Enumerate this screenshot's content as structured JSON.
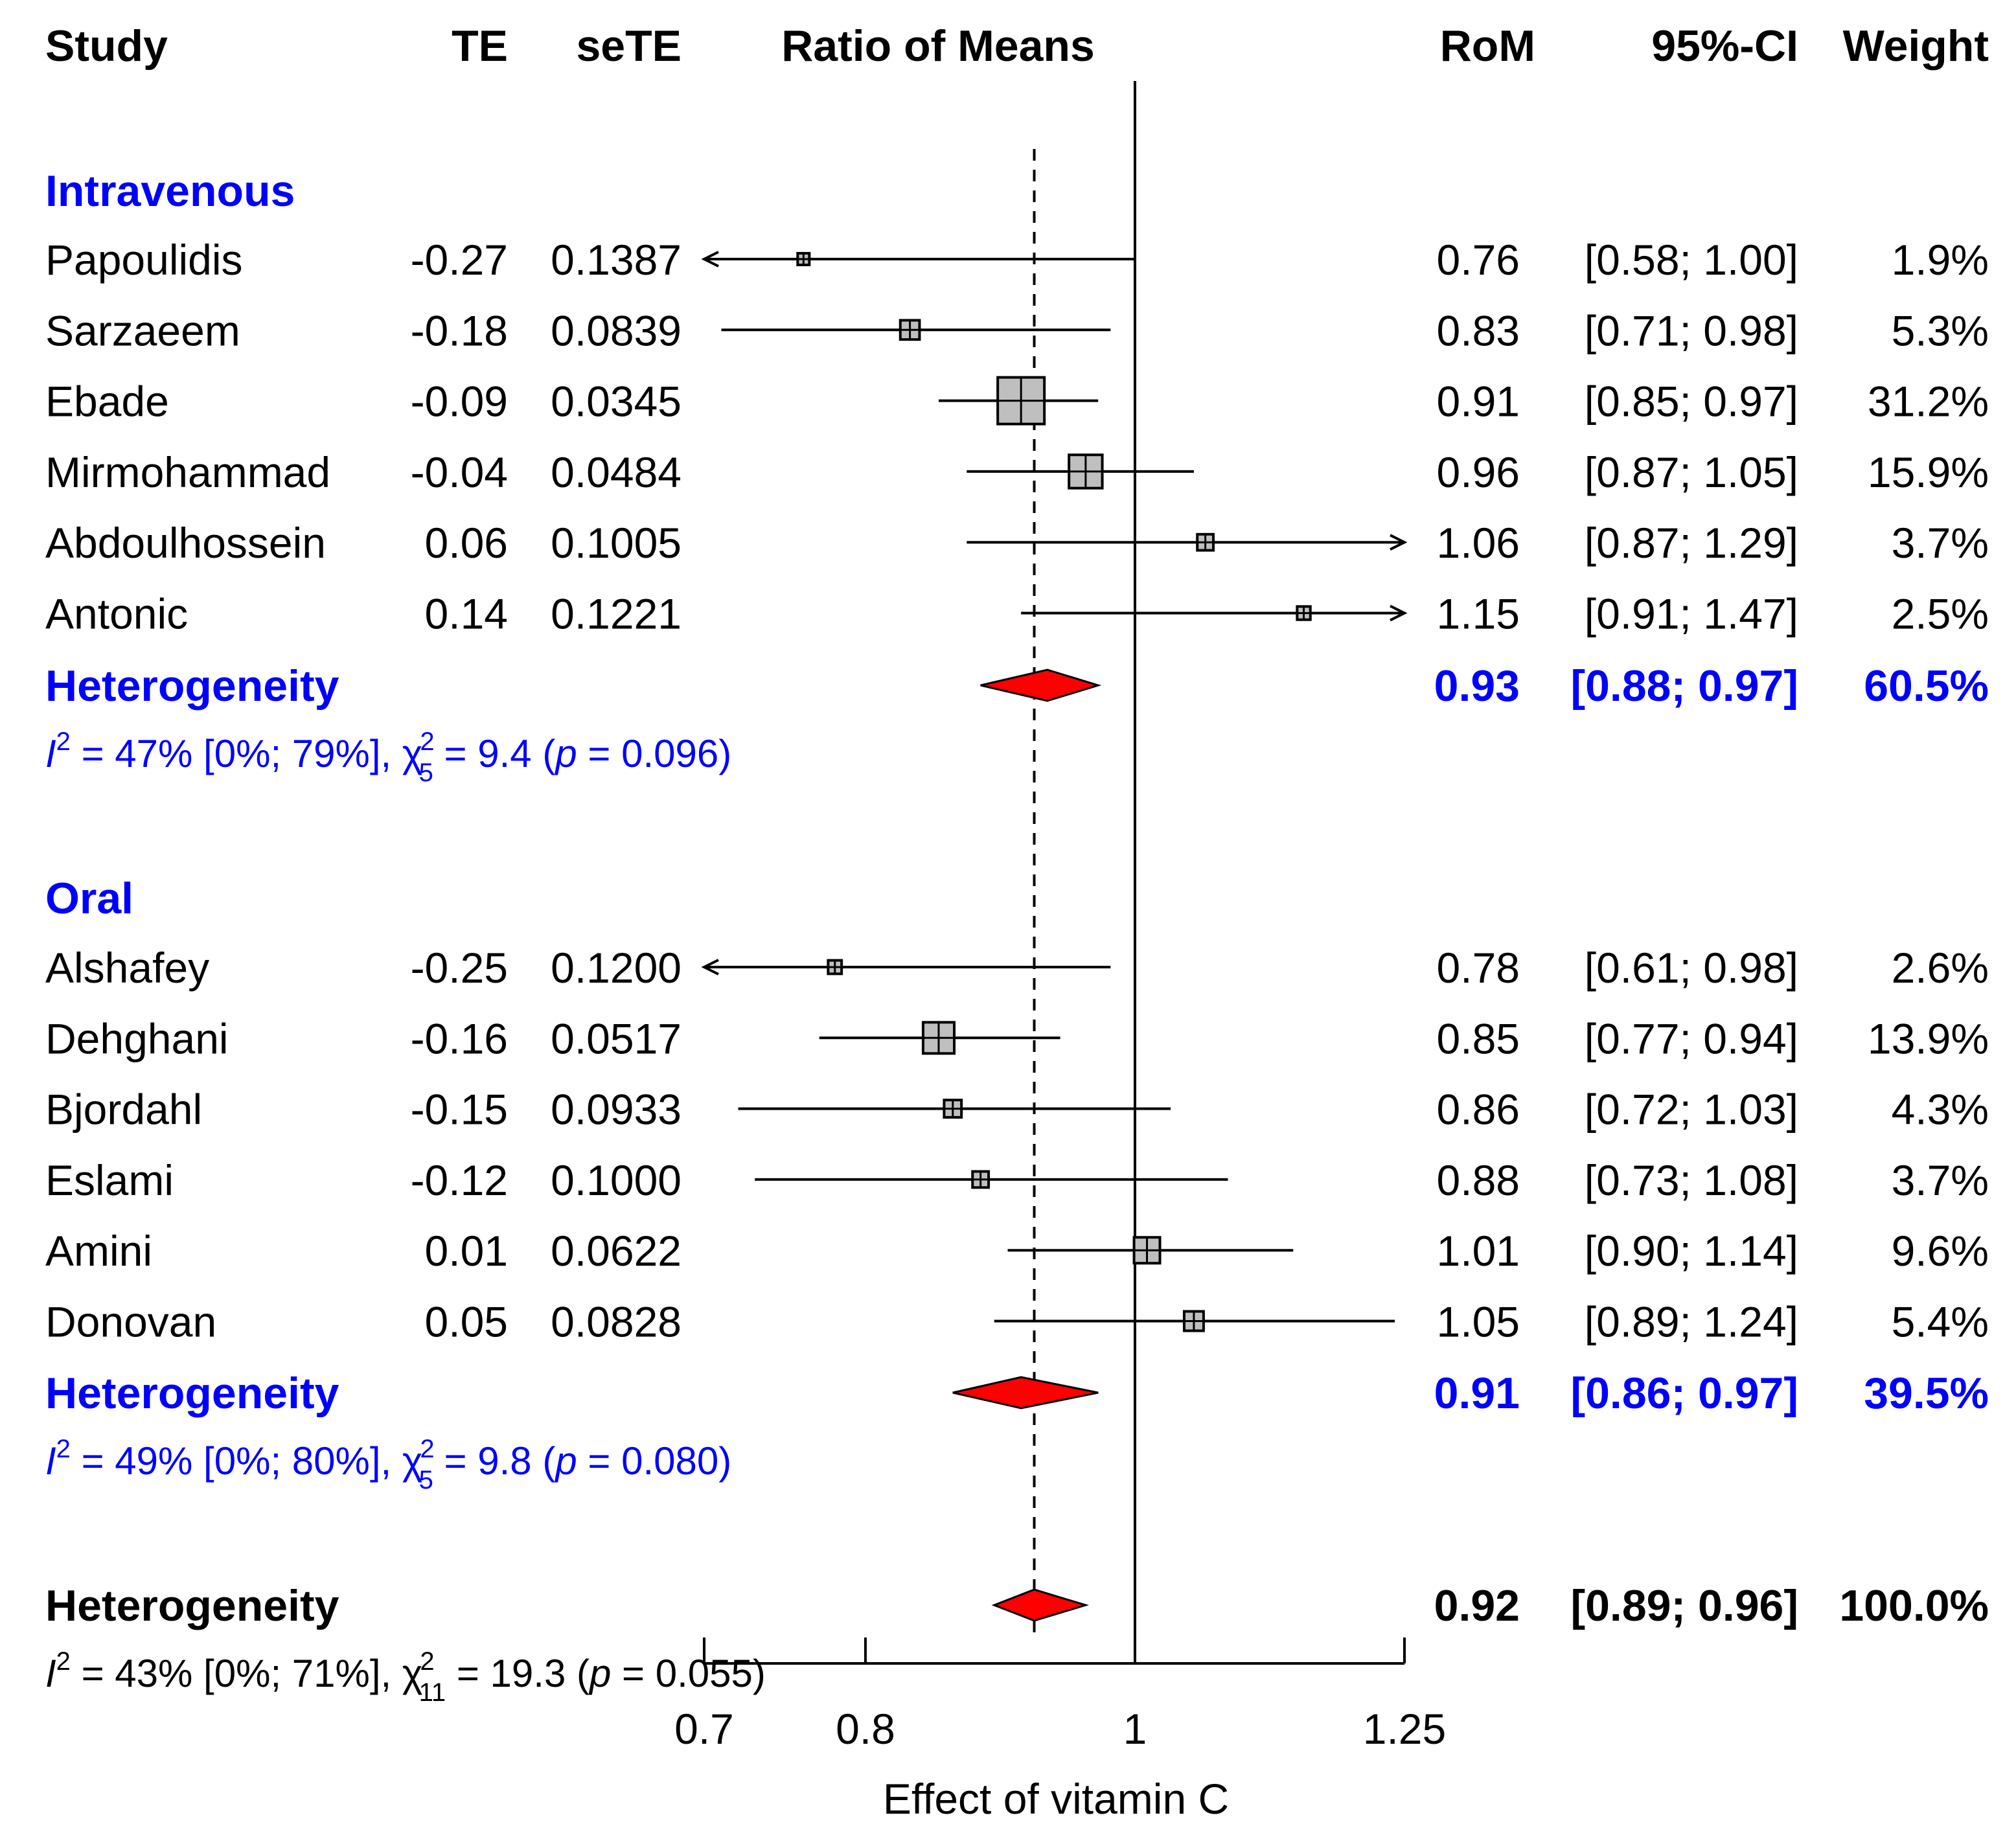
{
  "headers": {
    "study": "Study",
    "te": "TE",
    "sete": "seTE",
    "plot": "Ratio of Means",
    "rom": "RoM",
    "ci": "95%-CI",
    "weight": "Weight"
  },
  "colors": {
    "group_text": "#0000ff",
    "diamond": "#ff0000",
    "box": "#bfbfbf"
  },
  "chart_data": {
    "type": "forest",
    "x_scale": "log",
    "xlim": [
      0.7,
      1.25
    ],
    "ticks": [
      {
        "value": 0.7,
        "label": "0.7"
      },
      {
        "value": 0.8,
        "label": "0.8"
      },
      {
        "value": 1,
        "label": "1"
      },
      {
        "value": 1.25,
        "label": "1.25"
      }
    ],
    "xlabel": "Effect of vitamin C",
    "reference_line": 1,
    "overall_line": 0.92,
    "groups": [
      {
        "name": "Intravenous",
        "studies": [
          {
            "study": "Papoulidis",
            "te": "-0.27",
            "sete": "0.1387",
            "rom": 0.76,
            "lower": 0.58,
            "upper": 1.0,
            "rom_label": "0.76",
            "ci_label": "[0.58; 1.00]",
            "weight": "1.9%",
            "w": 1.9
          },
          {
            "study": "Sarzaeem",
            "te": "-0.18",
            "sete": "0.0839",
            "rom": 0.83,
            "lower": 0.71,
            "upper": 0.98,
            "rom_label": "0.83",
            "ci_label": "[0.71; 0.98]",
            "weight": "5.3%",
            "w": 5.3
          },
          {
            "study": "Ebade",
            "te": "-0.09",
            "sete": "0.0345",
            "rom": 0.91,
            "lower": 0.85,
            "upper": 0.97,
            "rom_label": "0.91",
            "ci_label": "[0.85; 0.97]",
            "weight": "31.2%",
            "w": 31.2
          },
          {
            "study": "Mirmohammad",
            "te": "-0.04",
            "sete": "0.0484",
            "rom": 0.96,
            "lower": 0.87,
            "upper": 1.05,
            "rom_label": "0.96",
            "ci_label": "[0.87; 1.05]",
            "weight": "15.9%",
            "w": 15.9
          },
          {
            "study": "Abdoulhossein",
            "te": "0.06",
            "sete": "0.1005",
            "rom": 1.06,
            "lower": 0.87,
            "upper": 1.29,
            "rom_label": "1.06",
            "ci_label": "[0.87; 1.29]",
            "weight": "3.7%",
            "w": 3.7
          },
          {
            "study": "Antonic",
            "te": "0.14",
            "sete": "0.1221",
            "rom": 1.15,
            "lower": 0.91,
            "upper": 1.47,
            "rom_label": "1.15",
            "ci_label": "[0.91; 1.47]",
            "weight": "2.5%",
            "w": 2.5
          }
        ],
        "summary": {
          "label": "Heterogeneity",
          "rom": 0.93,
          "lower": 0.88,
          "upper": 0.97,
          "rom_label": "0.93",
          "ci_label": "[0.88; 0.97]",
          "weight": "60.5%"
        },
        "het": {
          "i2_text": "= 47% [0%; 79%], ",
          "chi_sub": "5",
          "chi_value": " = 9.4 (",
          "p_text": " = 0.096)"
        }
      },
      {
        "name": "Oral",
        "studies": [
          {
            "study": "Alshafey",
            "te": "-0.25",
            "sete": "0.1200",
            "rom": 0.78,
            "lower": 0.61,
            "upper": 0.98,
            "rom_label": "0.78",
            "ci_label": "[0.61; 0.98]",
            "weight": "2.6%",
            "w": 2.6
          },
          {
            "study": "Dehghani",
            "te": "-0.16",
            "sete": "0.0517",
            "rom": 0.85,
            "lower": 0.77,
            "upper": 0.94,
            "rom_label": "0.85",
            "ci_label": "[0.77; 0.94]",
            "weight": "13.9%",
            "w": 13.9
          },
          {
            "study": "Bjordahl",
            "te": "-0.15",
            "sete": "0.0933",
            "rom": 0.86,
            "lower": 0.72,
            "upper": 1.03,
            "rom_label": "0.86",
            "ci_label": "[0.72; 1.03]",
            "weight": "4.3%",
            "w": 4.3
          },
          {
            "study": "Eslami",
            "te": "-0.12",
            "sete": "0.1000",
            "rom": 0.88,
            "lower": 0.73,
            "upper": 1.08,
            "rom_label": "0.88",
            "ci_label": "[0.73; 1.08]",
            "weight": "3.7%",
            "w": 3.7
          },
          {
            "study": "Amini",
            "te": "0.01",
            "sete": "0.0622",
            "rom": 1.01,
            "lower": 0.9,
            "upper": 1.14,
            "rom_label": "1.01",
            "ci_label": "[0.90; 1.14]",
            "weight": "9.6%",
            "w": 9.6
          },
          {
            "study": "Donovan",
            "te": "0.05",
            "sete": "0.0828",
            "rom": 1.05,
            "lower": 0.89,
            "upper": 1.24,
            "rom_label": "1.05",
            "ci_label": "[0.89; 1.24]",
            "weight": "5.4%",
            "w": 5.4
          }
        ],
        "summary": {
          "label": "Heterogeneity",
          "rom": 0.91,
          "lower": 0.86,
          "upper": 0.97,
          "rom_label": "0.91",
          "ci_label": "[0.86; 0.97]",
          "weight": "39.5%"
        },
        "het": {
          "i2_text": "= 49% [0%; 80%], ",
          "chi_sub": "5",
          "chi_value": " = 9.8 (",
          "p_text": " = 0.080)"
        }
      }
    ],
    "overall": {
      "label": "Heterogeneity",
      "rom": 0.92,
      "lower": 0.89,
      "upper": 0.96,
      "rom_label": "0.92",
      "ci_label": "[0.89; 0.96]",
      "weight": "100.0%",
      "het": {
        "i2_text": "= 43% [0%; 71%], ",
        "chi_sub": "11",
        "chi_value": " = 19.3 (",
        "p_text": " = 0.055)"
      }
    }
  }
}
